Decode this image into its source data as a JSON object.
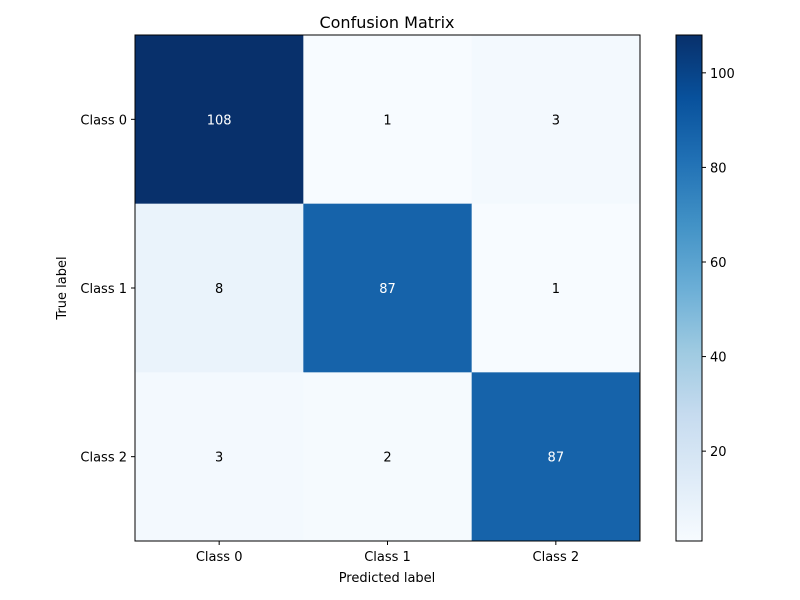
{
  "chart_data": {
    "type": "heatmap",
    "title": "Confusion Matrix",
    "xlabel": "Predicted label",
    "ylabel": "True label",
    "x_categories": [
      "Class 0",
      "Class 1",
      "Class 2"
    ],
    "y_categories": [
      "Class 0",
      "Class 1",
      "Class 2"
    ],
    "values": [
      [
        108,
        1,
        3
      ],
      [
        8,
        87,
        1
      ],
      [
        3,
        2,
        87
      ]
    ],
    "colormap": "Blues",
    "value_range": [
      1,
      108
    ],
    "colorbar_ticks": [
      20,
      40,
      60,
      80,
      100
    ],
    "colorbar_tick_labels": [
      "20",
      "40",
      "60",
      "80",
      "100"
    ],
    "grid": false,
    "colorbar_position": "right"
  }
}
